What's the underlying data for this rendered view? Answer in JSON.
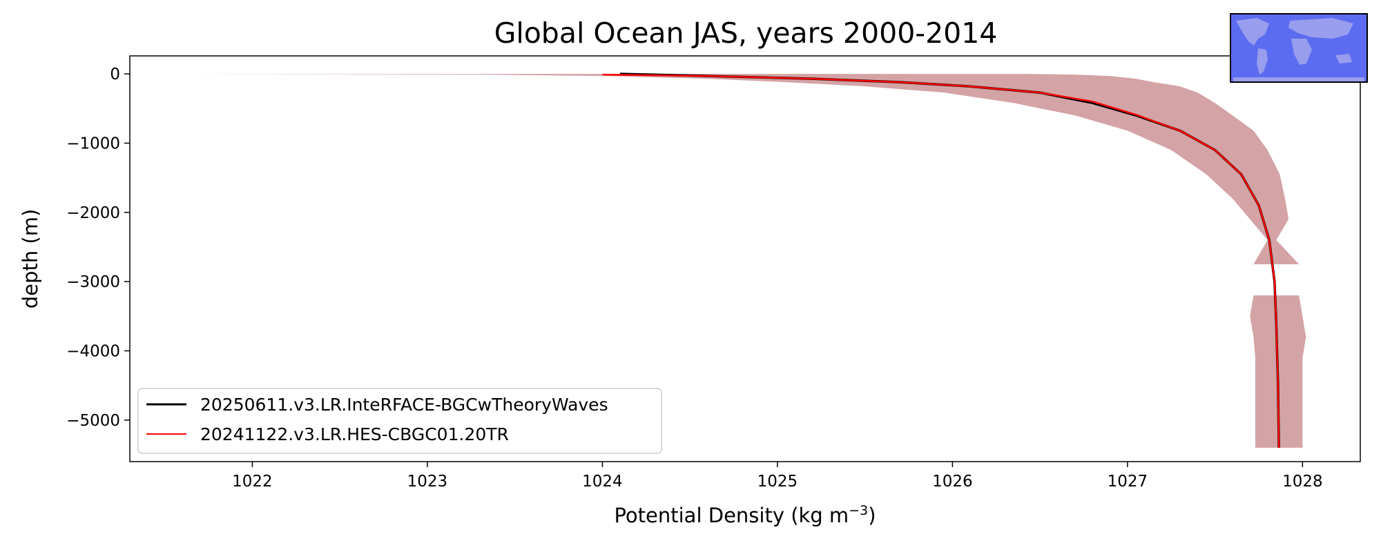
{
  "chart_data": {
    "type": "line",
    "title": "Global Ocean JAS, years 2000-2014",
    "xlabel": "Potential Density (kg m",
    "xlabel_unit_exponent": "−3",
    "xlabel_suffix": ")",
    "ylabel": "depth (m)",
    "xlim": [
      1021.3,
      1028.33
    ],
    "ylim": [
      -5600,
      260
    ],
    "xticks": [
      1022,
      1023,
      1024,
      1025,
      1026,
      1027,
      1028
    ],
    "xtick_labels": [
      "1022",
      "1023",
      "1024",
      "1025",
      "1026",
      "1027",
      "1028"
    ],
    "yticks": [
      0,
      -1000,
      -2000,
      -3000,
      -4000,
      -5000
    ],
    "ytick_labels": [
      "0",
      "−1000",
      "−2000",
      "−3000",
      "−4000",
      "−5000"
    ],
    "legend_position": "lower-left",
    "series": [
      {
        "name": "20250611.v3.LR.InteRFACE-BGCwTheoryWaves",
        "color": "#000000",
        "x": [
          1024.1,
          1024.6,
          1025.2,
          1025.7,
          1026.1,
          1026.5,
          1026.8,
          1027.05,
          1027.3,
          1027.5,
          1027.65,
          1027.75,
          1027.81,
          1027.84,
          1027.85,
          1027.86,
          1027.865
        ],
        "y": [
          0,
          -30,
          -70,
          -120,
          -180,
          -270,
          -420,
          -600,
          -820,
          -1100,
          -1450,
          -1900,
          -2400,
          -3000,
          -3600,
          -4500,
          -5400
        ]
      },
      {
        "name": "20241122.v3.LR.HES-CBGC01.20TR",
        "color": "#ff0000",
        "x": [
          1024.0,
          1024.6,
          1025.2,
          1025.7,
          1026.1,
          1026.5,
          1026.8,
          1027.05,
          1027.3,
          1027.5,
          1027.65,
          1027.75,
          1027.81,
          1027.84,
          1027.85,
          1027.86,
          1027.865
        ],
        "y": [
          -10,
          -30,
          -70,
          -120,
          -180,
          -270,
          -400,
          -590,
          -820,
          -1100,
          -1450,
          -1900,
          -2400,
          -3000,
          -3600,
          -4500,
          -5400
        ]
      }
    ],
    "bands": [
      {
        "name": "obs-range-upper",
        "color": "#d4a3a5",
        "y": [
          0,
          -10,
          -30,
          -70,
          -120,
          -180,
          -270,
          -420,
          -600,
          -820,
          -1100,
          -1450,
          -1800,
          -2100,
          -2400,
          -2750
        ],
        "xmin": [
          1021.65,
          1023.3,
          1024.0,
          1024.6,
          1025.05,
          1025.5,
          1025.95,
          1026.35,
          1026.7,
          1027.0,
          1027.25,
          1027.45,
          1027.6,
          1027.7,
          1027.8,
          1027.72
        ],
        "xmax": [
          1026.4,
          1026.7,
          1026.9,
          1027.05,
          1027.15,
          1027.3,
          1027.4,
          1027.5,
          1027.6,
          1027.72,
          1027.8,
          1027.87,
          1027.9,
          1027.92,
          1027.85,
          1027.98
        ]
      },
      {
        "name": "obs-range-lower",
        "color": "#d4a3a5",
        "y": [
          -3200,
          -3500,
          -3800,
          -4100,
          -4500,
          -5000,
          -5400
        ],
        "xmin": [
          1027.72,
          1027.7,
          1027.72,
          1027.73,
          1027.73,
          1027.73,
          1027.73
        ],
        "xmax": [
          1027.98,
          1028.0,
          1028.02,
          1028.0,
          1028.0,
          1028.0,
          1028.0
        ]
      }
    ]
  },
  "map_thumbnail": {
    "ocean_color": "#5b6cf0",
    "land_color": "#9fa3ee"
  }
}
